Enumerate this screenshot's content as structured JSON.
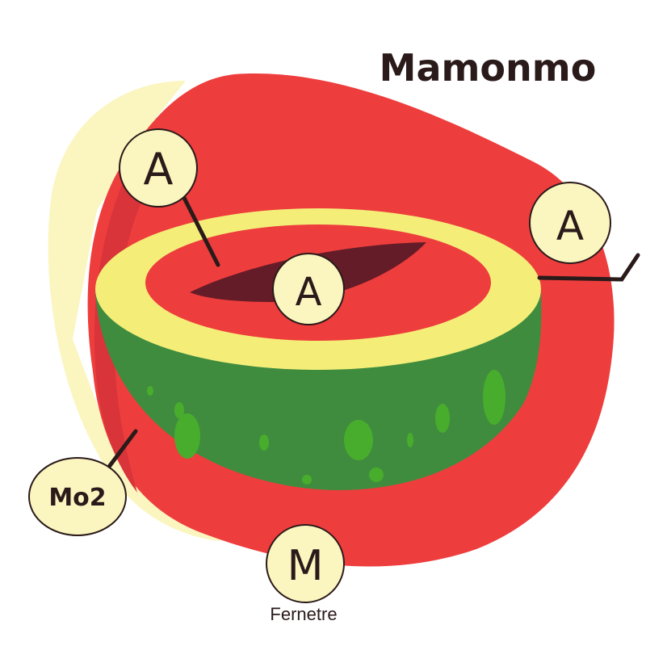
{
  "diagram": {
    "title": "Mamonmo",
    "labels": {
      "upper_left": "A",
      "right": "A",
      "center": "A",
      "lower_left": "Mo2",
      "bottom": "M"
    },
    "caption": "Fernetre"
  },
  "colors": {
    "background": "#ffffff",
    "cream": "#fbf5bf",
    "red": "#ee3d3d",
    "red_dark": "#d8343a",
    "yellow": "#f4ee78",
    "green": "#3f8c3f",
    "green_spot": "#48ad2c",
    "seed": "#641c28",
    "line": "#2a1a1a",
    "text": "#2a1a1a"
  }
}
